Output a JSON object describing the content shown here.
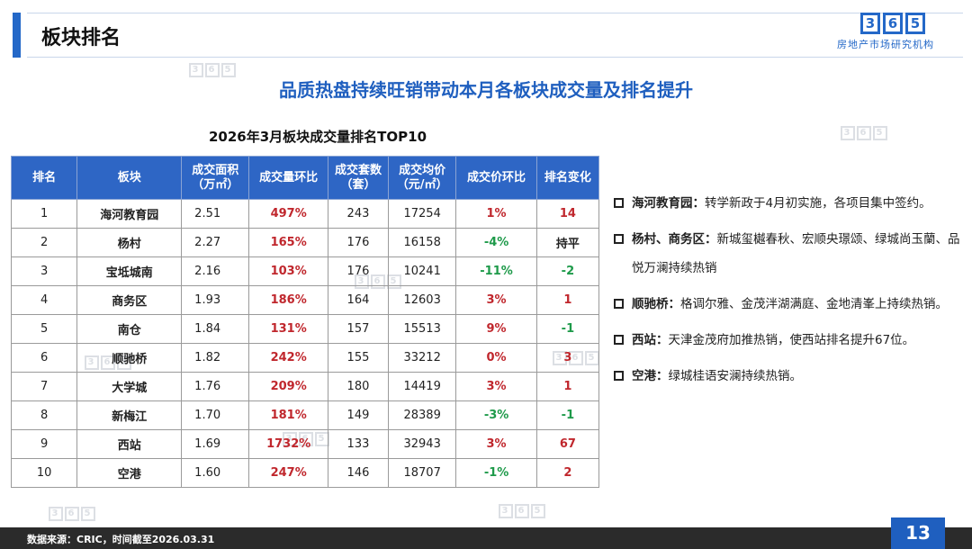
{
  "header": {
    "title": "板块排名",
    "logo_number": [
      "3",
      "6",
      "5"
    ],
    "logo_text": "房地产市场研究机构"
  },
  "subtitle": "品质热盘持续旺销带动本月各板块成交量及排名提升",
  "table": {
    "title": "2026年3月板块成交量排名TOP10",
    "headers": [
      "排名",
      "板块",
      "成交面积\n（万㎡）",
      "成交量环比",
      "成交套数\n（套）",
      "成交均价\n（元/㎡）",
      "成交价环比",
      "排名变化"
    ],
    "rows": [
      {
        "rank": "1",
        "block": "海河教育园",
        "area": "2.51",
        "vol_mom": "497%",
        "units": "243",
        "price": "17254",
        "price_mom": "1%",
        "rank_change": "14"
      },
      {
        "rank": "2",
        "block": "杨村",
        "area": "2.27",
        "vol_mom": "165%",
        "units": "176",
        "price": "16158",
        "price_mom": "-4%",
        "rank_change": "持平"
      },
      {
        "rank": "3",
        "block": "宝坻城南",
        "area": "2.16",
        "vol_mom": "103%",
        "units": "176",
        "price": "10241",
        "price_mom": "-11%",
        "rank_change": "-2"
      },
      {
        "rank": "4",
        "block": "商务区",
        "area": "1.93",
        "vol_mom": "186%",
        "units": "164",
        "price": "12603",
        "price_mom": "3%",
        "rank_change": "1"
      },
      {
        "rank": "5",
        "block": "南仓",
        "area": "1.84",
        "vol_mom": "131%",
        "units": "157",
        "price": "15513",
        "price_mom": "9%",
        "rank_change": "-1"
      },
      {
        "rank": "6",
        "block": "顺驰桥",
        "area": "1.82",
        "vol_mom": "242%",
        "units": "155",
        "price": "33212",
        "price_mom": "0%",
        "rank_change": "3"
      },
      {
        "rank": "7",
        "block": "大学城",
        "area": "1.76",
        "vol_mom": "209%",
        "units": "180",
        "price": "14419",
        "price_mom": "3%",
        "rank_change": "1"
      },
      {
        "rank": "8",
        "block": "新梅江",
        "area": "1.70",
        "vol_mom": "181%",
        "units": "149",
        "price": "28389",
        "price_mom": "-3%",
        "rank_change": "-1"
      },
      {
        "rank": "9",
        "block": "西站",
        "area": "1.69",
        "vol_mom": "1732%",
        "units": "133",
        "price": "32943",
        "price_mom": "3%",
        "rank_change": "67"
      },
      {
        "rank": "10",
        "block": "空港",
        "area": "1.60",
        "vol_mom": "247%",
        "units": "146",
        "price": "18707",
        "price_mom": "-1%",
        "rank_change": "2"
      }
    ]
  },
  "notes": [
    {
      "label": "海河教育园：",
      "text": "转学新政于4月初实施，各项目集中签约。"
    },
    {
      "label": "杨村、商务区：",
      "text": "新城玺樾春秋、宏顺央璟颂、绿城尚玉蘭、品悦万澜持续热销"
    },
    {
      "label": "顺驰桥：",
      "text": "格调尔雅、金茂泮湖满庭、金地清峯上持续热销。"
    },
    {
      "label": "西站：",
      "text": "天津金茂府加推热销，使西站排名提升67位。"
    },
    {
      "label": "空港：",
      "text": "绿城桂语安澜持续热销。"
    }
  ],
  "footer": {
    "source": "数据来源：CRIC，时间截至2026.03.31",
    "page": "13"
  },
  "colors": {
    "accent": "#2468c8",
    "header_fill": "#2e66c5",
    "up": "#c0272d",
    "down": "#1e9a4a"
  }
}
